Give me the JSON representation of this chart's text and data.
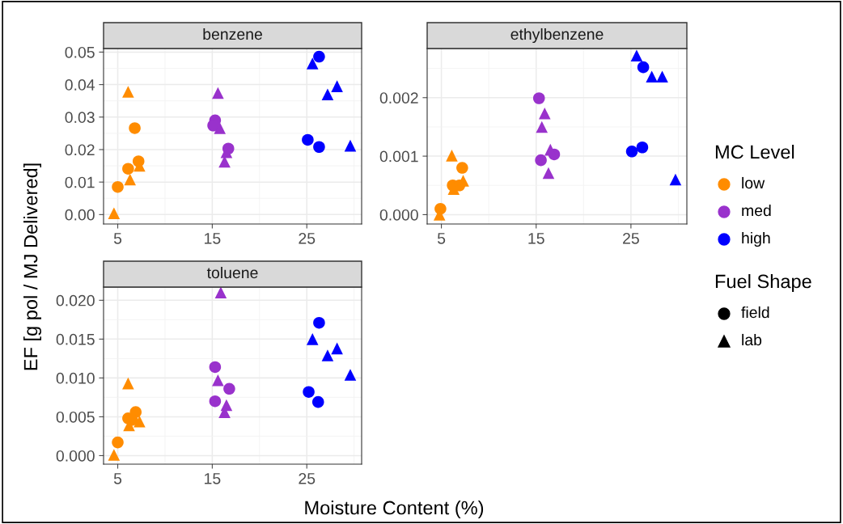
{
  "chart_data": [
    {
      "type": "scatter",
      "title": "benzene",
      "xlabel": "Moisture Content (%)",
      "ylabel": "EF [g pol / MJ Delivered]",
      "xlim": [
        3.5,
        30.8
      ],
      "xticks": [
        5,
        15,
        25
      ],
      "ylim": [
        -0.0029,
        0.0511
      ],
      "yticks": [
        {
          "value": 0,
          "label": "0.00"
        },
        {
          "value": 0.01,
          "label": "0.01"
        },
        {
          "value": 0.02,
          "label": "0.02"
        },
        {
          "value": 0.03,
          "label": "0.03"
        },
        {
          "value": 0.04,
          "label": "0.04"
        },
        {
          "value": 0.05,
          "label": "0.05"
        }
      ],
      "grid": true,
      "series": [
        {
          "color": "#ff8c00",
          "marker": "circle",
          "x": [
            5.0,
            6.1,
            6.8,
            7.2
          ],
          "values": [
            0.0085,
            0.0141,
            0.0266,
            0.0164
          ]
        },
        {
          "color": "#ff8c00",
          "marker": "triangle",
          "x": [
            4.6,
            6.1,
            6.3,
            7.3
          ],
          "values": [
            0.0004,
            0.0378,
            0.0108,
            0.015
          ]
        },
        {
          "color": "#9932cc",
          "marker": "circle",
          "x": [
            15.3,
            15.1,
            16.7
          ],
          "values": [
            0.029,
            0.0274,
            0.0203
          ]
        },
        {
          "color": "#9932cc",
          "marker": "triangle",
          "x": [
            15.6,
            15.8,
            16.3,
            16.5
          ],
          "values": [
            0.0374,
            0.0266,
            0.0163,
            0.0192
          ]
        },
        {
          "color": "#0000ff",
          "marker": "circle",
          "x": [
            26.3,
            25.1,
            26.3
          ],
          "values": [
            0.0486,
            0.023,
            0.0208
          ]
        },
        {
          "color": "#0000ff",
          "marker": "triangle",
          "x": [
            25.6,
            27.2,
            28.2,
            29.6
          ],
          "values": [
            0.0465,
            0.037,
            0.0395,
            0.0212
          ]
        }
      ]
    },
    {
      "type": "scatter",
      "title": "ethylbenzene",
      "xlim": [
        3.5,
        30.9
      ],
      "xticks": [
        5,
        15,
        25
      ],
      "ylim": [
        -0.00016,
        0.00284
      ],
      "yticks": [
        {
          "value": 0,
          "label": "0.000"
        },
        {
          "value": 0.001,
          "label": "0.001"
        },
        {
          "value": 0.002,
          "label": "0.002"
        }
      ],
      "grid": true,
      "series": [
        {
          "color": "#ff8c00",
          "marker": "circle",
          "x": [
            4.9,
            6.2,
            7.2,
            6.9
          ],
          "values": [
            0.0001,
            0.0005,
            0.0008,
            0.0005
          ]
        },
        {
          "color": "#ff8c00",
          "marker": "triangle",
          "x": [
            4.8,
            6.1,
            6.3,
            7.3
          ],
          "values": [
            0.0,
            0.00101,
            0.00044,
            0.00058
          ]
        },
        {
          "color": "#9932cc",
          "marker": "circle",
          "x": [
            15.3,
            15.5,
            16.9
          ],
          "values": [
            0.00199,
            0.00093,
            0.00103
          ]
        },
        {
          "color": "#9932cc",
          "marker": "triangle",
          "x": [
            15.9,
            15.6,
            16.5,
            16.3
          ],
          "values": [
            0.00173,
            0.0015,
            0.00111,
            0.00071
          ]
        },
        {
          "color": "#0000ff",
          "marker": "circle",
          "x": [
            26.3,
            25.1,
            26.2
          ],
          "values": [
            0.00252,
            0.00108,
            0.00115
          ]
        },
        {
          "color": "#0000ff",
          "marker": "triangle",
          "x": [
            25.6,
            27.2,
            28.3,
            29.7
          ],
          "values": [
            0.00272,
            0.00236,
            0.00236,
            0.0006
          ]
        }
      ]
    },
    {
      "type": "scatter",
      "title": "toluene",
      "xlim": [
        3.5,
        30.8
      ],
      "xticks": [
        5,
        15,
        25
      ],
      "ylim": [
        -0.0011,
        0.0217
      ],
      "yticks": [
        {
          "value": 0,
          "label": "0.000"
        },
        {
          "value": 0.005,
          "label": "0.005"
        },
        {
          "value": 0.01,
          "label": "0.010"
        },
        {
          "value": 0.015,
          "label": "0.015"
        },
        {
          "value": 0.02,
          "label": "0.020"
        }
      ],
      "grid": true,
      "series": [
        {
          "color": "#ff8c00",
          "marker": "circle",
          "x": [
            5.0,
            6.1,
            6.9,
            6.5
          ],
          "values": [
            0.0017,
            0.0048,
            0.0056,
            0.0046
          ]
        },
        {
          "color": "#ff8c00",
          "marker": "triangle",
          "x": [
            4.6,
            6.1,
            6.2,
            7.3
          ],
          "values": [
            0.0001,
            0.0093,
            0.0039,
            0.0044
          ]
        },
        {
          "color": "#9932cc",
          "marker": "circle",
          "x": [
            15.3,
            15.3,
            16.8
          ],
          "values": [
            0.0114,
            0.007,
            0.0086
          ]
        },
        {
          "color": "#9932cc",
          "marker": "triangle",
          "x": [
            15.9,
            15.6,
            16.5,
            16.3
          ],
          "values": [
            0.021,
            0.0097,
            0.0065,
            0.0056
          ]
        },
        {
          "color": "#0000ff",
          "marker": "circle",
          "x": [
            26.3,
            25.2,
            26.2
          ],
          "values": [
            0.0171,
            0.0082,
            0.0069
          ]
        },
        {
          "color": "#0000ff",
          "marker": "triangle",
          "x": [
            25.6,
            27.2,
            28.2,
            29.6
          ],
          "values": [
            0.015,
            0.0129,
            0.0138,
            0.0104
          ]
        }
      ]
    },
    {
      "type": "other",
      "legend": "right",
      "annotations": [
        "MC Level",
        "Fuel Shape"
      ],
      "series": [
        {
          "name": "low",
          "color": "#ff8c00",
          "marker": "circle"
        },
        {
          "name": "med",
          "color": "#9932cc",
          "marker": "circle"
        },
        {
          "name": "high",
          "color": "#0000ff",
          "marker": "circle"
        },
        {
          "name": "field",
          "color": "#000000",
          "marker": "circle"
        },
        {
          "name": "lab",
          "color": "#000000",
          "marker": "triangle"
        }
      ]
    }
  ]
}
